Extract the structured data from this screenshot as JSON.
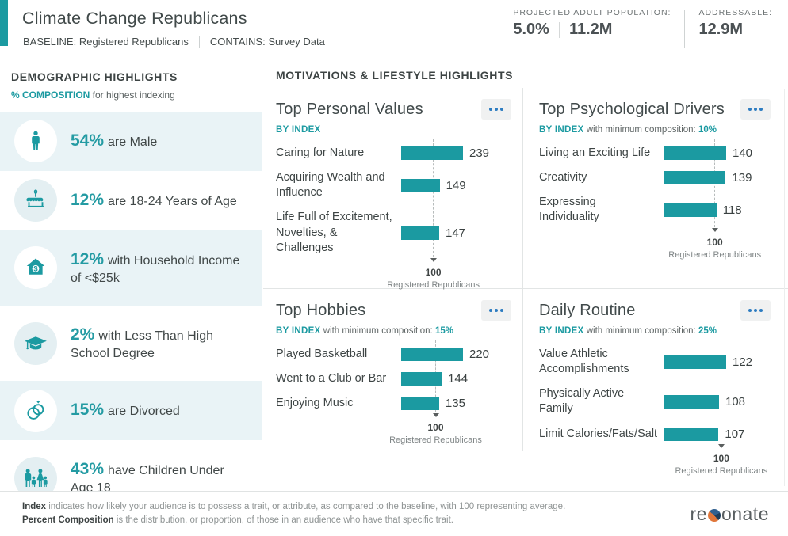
{
  "header": {
    "title": "Climate Change Republicans",
    "baseline_label": "BASELINE:",
    "baseline_value": "Registered Republicans",
    "contains_label": "CONTAINS:",
    "contains_value": "Survey Data",
    "projected_label": "PROJECTED ADULT POPULATION:",
    "projected_pct": "5.0%",
    "projected_count": "11.2M",
    "addressable_label": "ADDRESSABLE:",
    "addressable_value": "12.9M"
  },
  "sidebar": {
    "title": "DEMOGRAPHIC HIGHLIGHTS",
    "subtitle_strong": "% COMPOSITION",
    "subtitle_rest": " for highest indexing",
    "items": [
      {
        "pct": "54%",
        "text": "are Male",
        "icon": "male-icon"
      },
      {
        "pct": "12%",
        "text": "are 18-24 Years of Age",
        "icon": "birthday-cake-icon"
      },
      {
        "pct": "12%",
        "text": "with Household Income of <$25k",
        "icon": "house-dollar-icon"
      },
      {
        "pct": "2%",
        "text": "with Less Than High School Degree",
        "icon": "graduation-cap-icon"
      },
      {
        "pct": "15%",
        "text": "are Divorced",
        "icon": "wedding-rings-icon"
      },
      {
        "pct": "43%",
        "text": "have Children Under Age 18",
        "icon": "family-icon"
      }
    ]
  },
  "main": {
    "title": "MOTIVATIONS & LIFESTYLE HIGHLIGHTS"
  },
  "quadrants": [
    {
      "title": "Top Personal Values",
      "index_label": "BY INDEX",
      "comp_text": "",
      "comp_value": "",
      "menu_icon": "ellipsis-menu-icon",
      "bars": [
        {
          "label": "Caring for Nature",
          "value": 239
        },
        {
          "label": "Acquiring Wealth and Influence",
          "value": 149
        },
        {
          "label": "Life Full of Excitement, Novelties, & Challenges",
          "value": 147
        }
      ],
      "baseline_value": "100",
      "baseline_caption": "Registered Republicans"
    },
    {
      "title": "Top Psychological Drivers",
      "index_label": "BY INDEX",
      "comp_text": " with minimum composition: ",
      "comp_value": "10%",
      "menu_icon": "ellipsis-menu-icon",
      "bars": [
        {
          "label": "Living an Exciting Life",
          "value": 140
        },
        {
          "label": "Creativity",
          "value": 139
        },
        {
          "label": "Expressing Individuality",
          "value": 118
        }
      ],
      "baseline_value": "100",
      "baseline_caption": "Registered Republicans"
    },
    {
      "title": "Top Hobbies",
      "index_label": "BY INDEX",
      "comp_text": " with minimum composition: ",
      "comp_value": "15%",
      "menu_icon": "ellipsis-menu-icon",
      "bars": [
        {
          "label": "Played Basketball",
          "value": 220
        },
        {
          "label": "Went to a Club or Bar",
          "value": 144
        },
        {
          "label": "Enjoying Music",
          "value": 135
        }
      ],
      "baseline_value": "100",
      "baseline_caption": "Registered Republicans"
    },
    {
      "title": "Daily Routine",
      "index_label": "BY INDEX",
      "comp_text": " with minimum composition: ",
      "comp_value": "25%",
      "menu_icon": "ellipsis-menu-icon",
      "bars": [
        {
          "label": "Value Athletic Accomplishments",
          "value": 122
        },
        {
          "label": "Physically Active Family",
          "value": 108
        },
        {
          "label": "Limit Calories/Fats/Salt",
          "value": 107
        }
      ],
      "baseline_value": "100",
      "baseline_caption": "Registered Republicans"
    }
  ],
  "footer": {
    "line1_strong": "Index",
    "line1_rest": " indicates how likely your audience is to possess a trait, or attribute, as compared to the baseline, with 100 representing average.",
    "line2_strong": "Percent Composition",
    "line2_rest": " is the distribution, or proportion, of those in an audience who have that specific trait.",
    "logo_pre": "re",
    "logo_post": "onate"
  },
  "colors": {
    "teal": "#1b9aa1",
    "row_band": "#e9f3f6",
    "menu_dots_blue": "#2d7cc1"
  }
}
